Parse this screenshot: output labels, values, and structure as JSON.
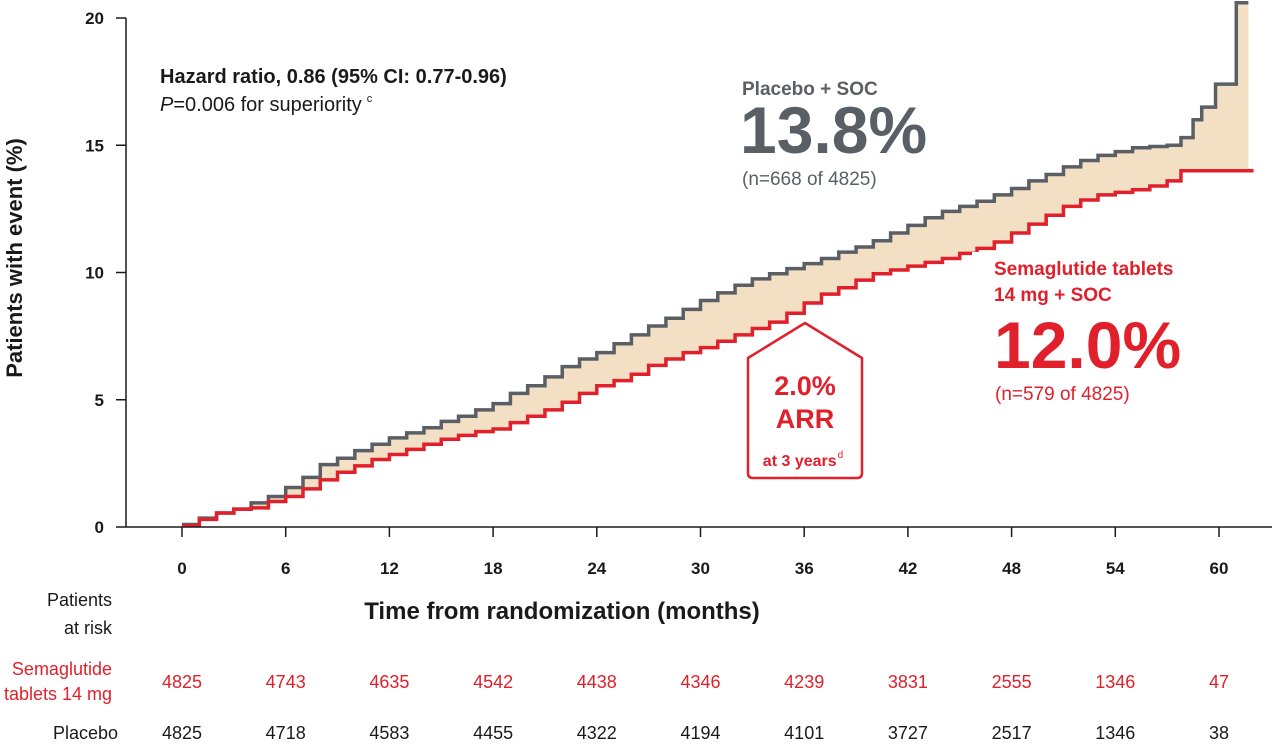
{
  "chart_data": {
    "type": "line",
    "ylabel": "Patients with event (%)",
    "xlabel": "Time from randomization (months)",
    "xlim": [
      -5,
      62
    ],
    "ylim": [
      0,
      20
    ],
    "x_ticks": [
      0,
      6,
      12,
      18,
      24,
      30,
      36,
      42,
      48,
      54,
      60
    ],
    "y_ticks": [
      0,
      5,
      10,
      15,
      20
    ],
    "grid": false,
    "series": [
      {
        "name": "Placebo + SOC",
        "color": "#5a5f66",
        "points": [
          [
            0,
            0.1
          ],
          [
            1,
            0.35
          ],
          [
            2,
            0.55
          ],
          [
            3,
            0.7
          ],
          [
            4,
            0.95
          ],
          [
            5,
            1.2
          ],
          [
            6,
            1.55
          ],
          [
            7,
            1.95
          ],
          [
            8,
            2.45
          ],
          [
            9,
            2.7
          ],
          [
            10,
            3.0
          ],
          [
            11,
            3.25
          ],
          [
            12,
            3.5
          ],
          [
            13,
            3.7
          ],
          [
            14,
            3.9
          ],
          [
            15,
            4.15
          ],
          [
            16,
            4.35
          ],
          [
            17,
            4.6
          ],
          [
            18,
            4.85
          ],
          [
            19,
            5.25
          ],
          [
            20,
            5.55
          ],
          [
            21,
            5.9
          ],
          [
            22,
            6.3
          ],
          [
            23,
            6.6
          ],
          [
            24,
            6.85
          ],
          [
            25,
            7.2
          ],
          [
            26,
            7.55
          ],
          [
            27,
            7.9
          ],
          [
            28,
            8.2
          ],
          [
            29,
            8.55
          ],
          [
            30,
            8.9
          ],
          [
            31,
            9.2
          ],
          [
            32,
            9.5
          ],
          [
            33,
            9.75
          ],
          [
            34,
            9.95
          ],
          [
            35,
            10.15
          ],
          [
            36,
            10.35
          ],
          [
            37,
            10.55
          ],
          [
            38,
            10.8
          ],
          [
            39,
            11.0
          ],
          [
            40,
            11.25
          ],
          [
            41,
            11.55
          ],
          [
            42,
            11.85
          ],
          [
            43,
            12.15
          ],
          [
            44,
            12.4
          ],
          [
            45,
            12.6
          ],
          [
            46,
            12.8
          ],
          [
            47,
            13.05
          ],
          [
            48,
            13.3
          ],
          [
            49,
            13.6
          ],
          [
            50,
            13.85
          ],
          [
            51,
            14.15
          ],
          [
            52,
            14.4
          ],
          [
            53,
            14.6
          ],
          [
            54,
            14.75
          ],
          [
            55,
            14.9
          ],
          [
            56,
            14.95
          ],
          [
            57,
            15.0
          ],
          [
            57.8,
            15.3
          ],
          [
            58.5,
            16.0
          ],
          [
            59,
            16.5
          ],
          [
            59.8,
            17.4
          ],
          [
            60.5,
            17.4
          ],
          [
            61,
            20.6
          ],
          [
            61.7,
            20.6
          ]
        ]
      },
      {
        "name": "Semaglutide tablets 14 mg + SOC",
        "color": "#e0202a",
        "points": [
          [
            0,
            0.05
          ],
          [
            1,
            0.3
          ],
          [
            2,
            0.55
          ],
          [
            3,
            0.7
          ],
          [
            4,
            0.75
          ],
          [
            5,
            1.0
          ],
          [
            6,
            1.2
          ],
          [
            7,
            1.5
          ],
          [
            8,
            1.85
          ],
          [
            9,
            2.15
          ],
          [
            10,
            2.4
          ],
          [
            11,
            2.65
          ],
          [
            12,
            2.85
          ],
          [
            13,
            3.05
          ],
          [
            14,
            3.25
          ],
          [
            15,
            3.45
          ],
          [
            16,
            3.6
          ],
          [
            17,
            3.75
          ],
          [
            18,
            3.85
          ],
          [
            19,
            4.1
          ],
          [
            20,
            4.35
          ],
          [
            21,
            4.6
          ],
          [
            22,
            4.9
          ],
          [
            23,
            5.25
          ],
          [
            24,
            5.55
          ],
          [
            25,
            5.75
          ],
          [
            26,
            6.0
          ],
          [
            27,
            6.35
          ],
          [
            28,
            6.6
          ],
          [
            29,
            6.85
          ],
          [
            30,
            7.05
          ],
          [
            31,
            7.3
          ],
          [
            32,
            7.55
          ],
          [
            33,
            7.8
          ],
          [
            34,
            8.05
          ],
          [
            35,
            8.4
          ],
          [
            36,
            8.8
          ],
          [
            37,
            9.15
          ],
          [
            38,
            9.4
          ],
          [
            39,
            9.7
          ],
          [
            40,
            9.95
          ],
          [
            41,
            10.1
          ],
          [
            42,
            10.25
          ],
          [
            43,
            10.4
          ],
          [
            44,
            10.55
          ],
          [
            45,
            10.75
          ],
          [
            46,
            10.95
          ],
          [
            47,
            11.2
          ],
          [
            48,
            11.55
          ],
          [
            49,
            11.9
          ],
          [
            50,
            12.25
          ],
          [
            51,
            12.6
          ],
          [
            52,
            12.85
          ],
          [
            53,
            13.05
          ],
          [
            54,
            13.15
          ],
          [
            55,
            13.25
          ],
          [
            56,
            13.4
          ],
          [
            57,
            13.6
          ],
          [
            57.8,
            14.0
          ],
          [
            62,
            14.0
          ]
        ]
      }
    ],
    "annotations": {
      "hazard_line1": "Hazard ratio, 0.86 (95% CI: 0.77-0.96)",
      "hazard_line2_italic": "P",
      "hazard_line2_rest": "=0.006 for superiority",
      "hazard_sup": "c",
      "placebo_name": "Placebo + SOC",
      "placebo_pct": "13.8%",
      "placebo_n": "(n=668 of 4825)",
      "sema_name_1": "Semaglutide tablets",
      "sema_name_2": "14 mg + SOC",
      "sema_pct": "12.0%",
      "sema_n": "(n=579 of 4825)",
      "arr_pct": "2.0%",
      "arr_label": "ARR",
      "arr_sub": "at 3 years",
      "arr_sup": "d"
    },
    "risk_table": {
      "header_1": "Patients",
      "header_2": "at risk",
      "sema_label_1": "Semaglutide",
      "sema_label_2": "tablets 14 mg",
      "placebo_label": "Placebo",
      "sema_values": [
        "4825",
        "4743",
        "4635",
        "4542",
        "4438",
        "4346",
        "4239",
        "3831",
        "2555",
        "1346",
        "47"
      ],
      "placebo_values": [
        "4825",
        "4718",
        "4583",
        "4455",
        "4322",
        "4194",
        "4101",
        "3727",
        "2517",
        "1346",
        "38"
      ]
    },
    "colors": {
      "fill_between": "#f3dfc4",
      "axis": "#1a1a1a"
    }
  }
}
